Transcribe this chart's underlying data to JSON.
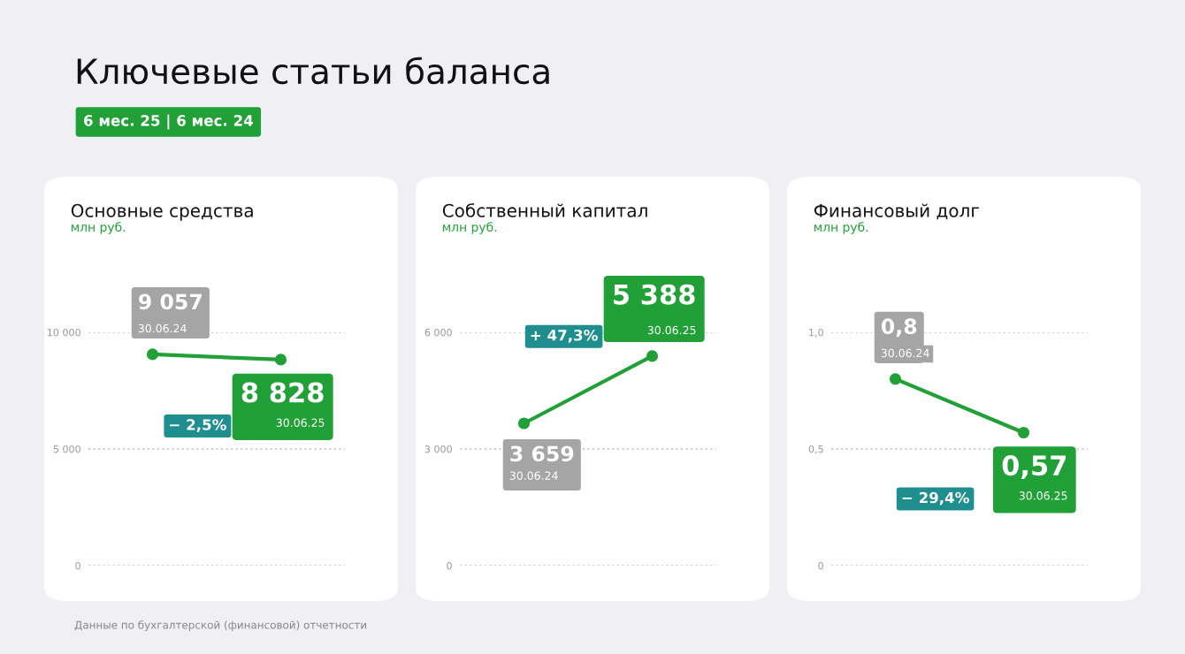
{
  "chart_data": [
    {
      "type": "other",
      "title": "Ключевые статьи баланса",
      "subtitle": "6 мес. 25 | 6 мес. 24",
      "annotations": [
        "Данные по бухгалтерской (финансовой) отчетности"
      ]
    },
    {
      "type": "line",
      "title": "Основные средства",
      "subtitle": "млн руб.",
      "categories": [
        null,
        null
      ],
      "series": [
        {
          "color": "#21a038",
          "values": [
            9057,
            8828
          ]
        }
      ],
      "value_labels": [
        "9 057",
        "8 828"
      ],
      "ylim": [
        0,
        10000
      ],
      "yticks": [
        0,
        {
          "value": 5000,
          "label": "5 000"
        },
        {
          "value": 10000,
          "label": "10 000"
        }
      ],
      "grid": "y",
      "marker": "circle",
      "annotations": [
        "30.06.24",
        "30.06.25",
        "− 2,5%"
      ]
    },
    {
      "type": "line",
      "title": "Собственный капитал",
      "subtitle": "млн руб.",
      "categories": [
        null,
        null
      ],
      "series": [
        {
          "color": "#21a038",
          "values": [
            3659,
            5388
          ]
        }
      ],
      "value_labels": [
        "3 659",
        "5 388"
      ],
      "ylim": [
        0,
        6000
      ],
      "yticks": [
        0,
        {
          "value": 3000,
          "label": "3 000"
        },
        {
          "value": 6000,
          "label": "6 000"
        }
      ],
      "grid": "y",
      "marker": "circle",
      "annotations": [
        "30.06.24",
        "30.06.25",
        "+ 47,3%"
      ]
    },
    {
      "type": "line",
      "title": "Финансовый долг",
      "subtitle": "млн руб.",
      "categories": [
        null,
        null
      ],
      "series": [
        {
          "color": "#21a038",
          "values": [
            0.8,
            0.57
          ]
        }
      ],
      "value_labels": [
        "0,8",
        "0,57"
      ],
      "ylim": [
        0,
        1.0
      ],
      "yticks": [
        0,
        {
          "value": 0.5,
          "label": "0,5"
        },
        {
          "value": 1.0,
          "label": "1,0"
        }
      ],
      "grid": "y",
      "marker": "circle",
      "annotations": [
        "30.06.24",
        "30.06.25",
        "− 29,4%"
      ]
    }
  ]
}
